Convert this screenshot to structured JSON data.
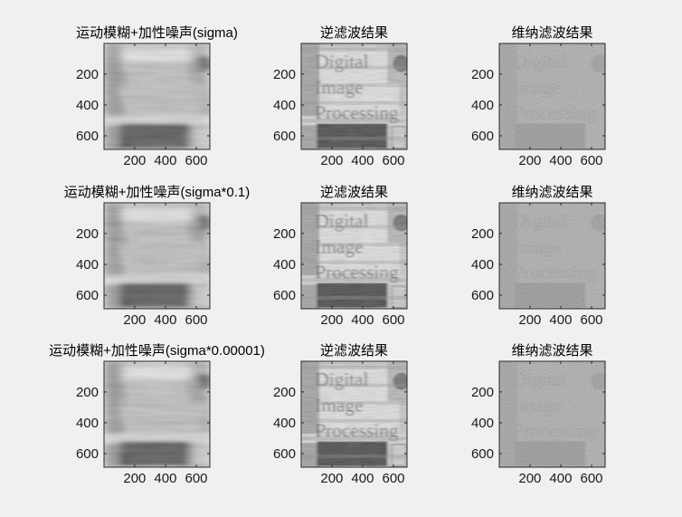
{
  "window": {
    "background": "#f0f0f0",
    "axis_color": "#262626"
  },
  "chart_data": [
    {
      "type": "heatmap",
      "title": "运动模糊+加性噪声(sigma)",
      "kind": "motion-blurred image",
      "xticks": [
        200,
        400,
        600
      ],
      "yticks": [
        200,
        400,
        600
      ],
      "xlim": [
        1,
        688
      ],
      "ylim": [
        1,
        688
      ],
      "y_reversed": true,
      "colormap": "gray"
    },
    {
      "type": "heatmap",
      "title": "逆滤波结果",
      "kind": "inverse-filtered image",
      "image_text": [
        "Digital",
        "Image",
        "Processing"
      ],
      "xticks": [
        200,
        400,
        600
      ],
      "yticks": [
        200,
        400,
        600
      ],
      "xlim": [
        1,
        688
      ],
      "ylim": [
        1,
        688
      ],
      "y_reversed": true,
      "colormap": "gray"
    },
    {
      "type": "heatmap",
      "title": "维纳滤波结果",
      "kind": "wiener-filtered image",
      "image_text": [
        "Digital",
        "Image",
        "Processing"
      ],
      "xticks": [
        200,
        400,
        600
      ],
      "yticks": [
        200,
        400,
        600
      ],
      "xlim": [
        1,
        688
      ],
      "ylim": [
        1,
        688
      ],
      "y_reversed": true,
      "colormap": "gray"
    },
    {
      "type": "heatmap",
      "title": "运动模糊+加性噪声(sigma*0.1)",
      "kind": "motion-blurred image",
      "xticks": [
        200,
        400,
        600
      ],
      "yticks": [
        200,
        400,
        600
      ],
      "xlim": [
        1,
        688
      ],
      "ylim": [
        1,
        688
      ],
      "y_reversed": true,
      "colormap": "gray"
    },
    {
      "type": "heatmap",
      "title": "逆滤波结果",
      "kind": "inverse-filtered image",
      "image_text": [
        "Digital",
        "Image",
        "Processing"
      ],
      "xticks": [
        200,
        400,
        600
      ],
      "yticks": [
        200,
        400,
        600
      ],
      "xlim": [
        1,
        688
      ],
      "ylim": [
        1,
        688
      ],
      "y_reversed": true,
      "colormap": "gray"
    },
    {
      "type": "heatmap",
      "title": "维纳滤波结果",
      "kind": "wiener-filtered image",
      "image_text": [
        "Digital",
        "Image",
        "Processing"
      ],
      "xticks": [
        200,
        400,
        600
      ],
      "yticks": [
        200,
        400,
        600
      ],
      "xlim": [
        1,
        688
      ],
      "ylim": [
        1,
        688
      ],
      "y_reversed": true,
      "colormap": "gray"
    },
    {
      "type": "heatmap",
      "title": "运动模糊+加性噪声(sigma*0.00001)",
      "kind": "motion-blurred image",
      "xticks": [
        200,
        400,
        600
      ],
      "yticks": [
        200,
        400,
        600
      ],
      "xlim": [
        1,
        688
      ],
      "ylim": [
        1,
        688
      ],
      "y_reversed": true,
      "colormap": "gray"
    },
    {
      "type": "heatmap",
      "title": "逆滤波结果",
      "kind": "inverse-filtered image",
      "image_text": [
        "Digital",
        "Image",
        "Processing"
      ],
      "xticks": [
        200,
        400,
        600
      ],
      "yticks": [
        200,
        400,
        600
      ],
      "xlim": [
        1,
        688
      ],
      "ylim": [
        1,
        688
      ],
      "y_reversed": true,
      "colormap": "gray"
    },
    {
      "type": "heatmap",
      "title": "维纳滤波结果",
      "kind": "wiener-filtered image",
      "image_text": [
        "Digital",
        "Image",
        "Processing"
      ],
      "xticks": [
        200,
        400,
        600
      ],
      "yticks": [
        200,
        400,
        600
      ],
      "xlim": [
        1,
        688
      ],
      "ylim": [
        1,
        688
      ],
      "y_reversed": true,
      "colormap": "gray"
    }
  ]
}
